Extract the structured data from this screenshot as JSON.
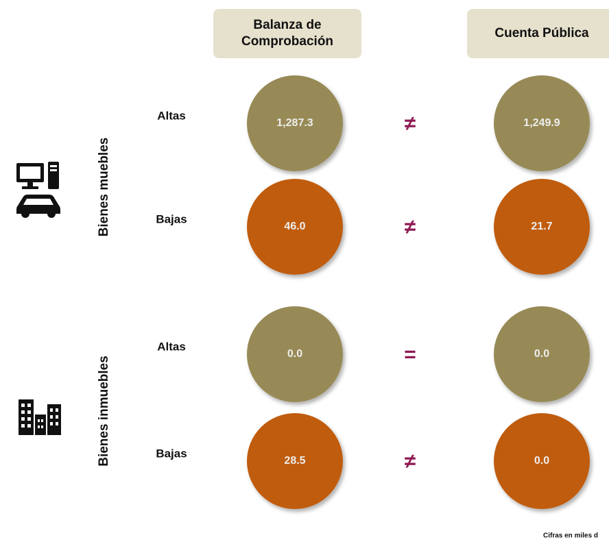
{
  "headers": [
    [
      "Balanza de",
      "Comprobación"
    ],
    [
      "Cuenta Pública"
    ]
  ],
  "groups": [
    {
      "label": "Bienes muebles",
      "rows": [
        {
          "label": "Altas",
          "values": [
            "1,287.3",
            "1,249.9"
          ],
          "relation": "≠"
        },
        {
          "label": "Bajas",
          "values": [
            "46.0",
            "21.7"
          ],
          "relation": "≠"
        }
      ]
    },
    {
      "label": "Bienes inmuebles",
      "rows": [
        {
          "label": "Altas",
          "values": [
            "0.0",
            "0.0"
          ],
          "relation": "="
        },
        {
          "label": "Bajas",
          "values": [
            "28.5",
            "0.0"
          ],
          "relation": "≠"
        }
      ]
    }
  ],
  "footnote": "Cifras en miles d"
}
